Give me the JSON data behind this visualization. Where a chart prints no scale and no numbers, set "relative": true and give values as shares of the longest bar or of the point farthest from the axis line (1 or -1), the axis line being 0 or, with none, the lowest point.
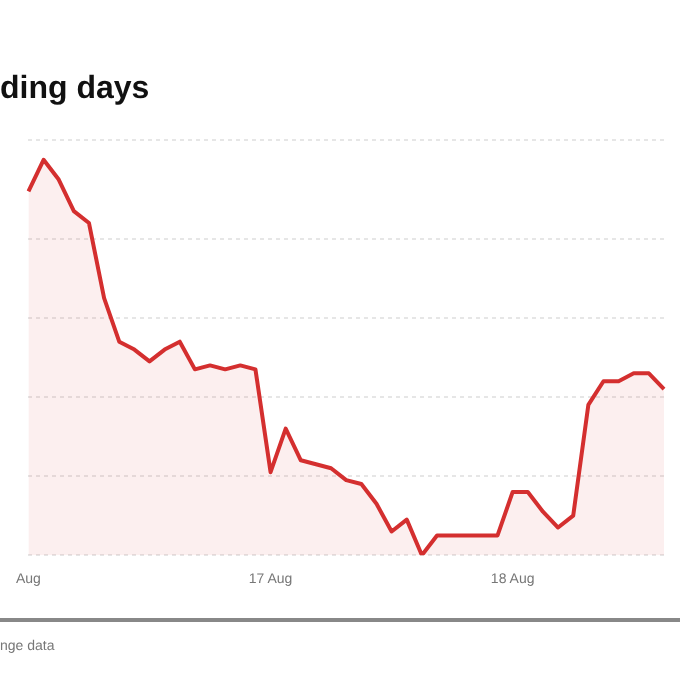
{
  "chart_data": {
    "type": "area",
    "title": "ding days",
    "relative": true,
    "grid": "y",
    "legend": false,
    "marker": "none",
    "line_style": "solid",
    "categories": [
      "Aug",
      null,
      null,
      null,
      null,
      null,
      null,
      null,
      null,
      null,
      null,
      null,
      null,
      null,
      null,
      null,
      "17 Aug",
      null,
      null,
      null,
      null,
      null,
      null,
      null,
      null,
      null,
      null,
      null,
      null,
      null,
      null,
      null,
      "18 Aug",
      null,
      null,
      null,
      null,
      null,
      null,
      null,
      null,
      null,
      null
    ],
    "series": [
      {
        "color": "#d42f2f",
        "values": [
          0.92,
          1,
          0.95,
          0.87,
          0.84,
          0.65,
          0.54,
          0.52,
          0.49,
          0.52,
          0.54,
          0.47,
          0.48,
          0.47,
          0.48,
          0.47,
          0.21,
          0.32,
          0.24,
          0.23,
          0.22,
          0.19,
          0.18,
          0.13,
          0.06,
          0.09,
          0,
          0.05,
          0.05,
          0.05,
          0.05,
          0.05,
          0.16,
          0.16,
          0.11,
          0.07,
          0.1,
          0.38,
          0.44,
          0.44,
          0.46,
          0.46,
          0.42
        ]
      }
    ],
    "annotations": [
      "nge data"
    ]
  }
}
